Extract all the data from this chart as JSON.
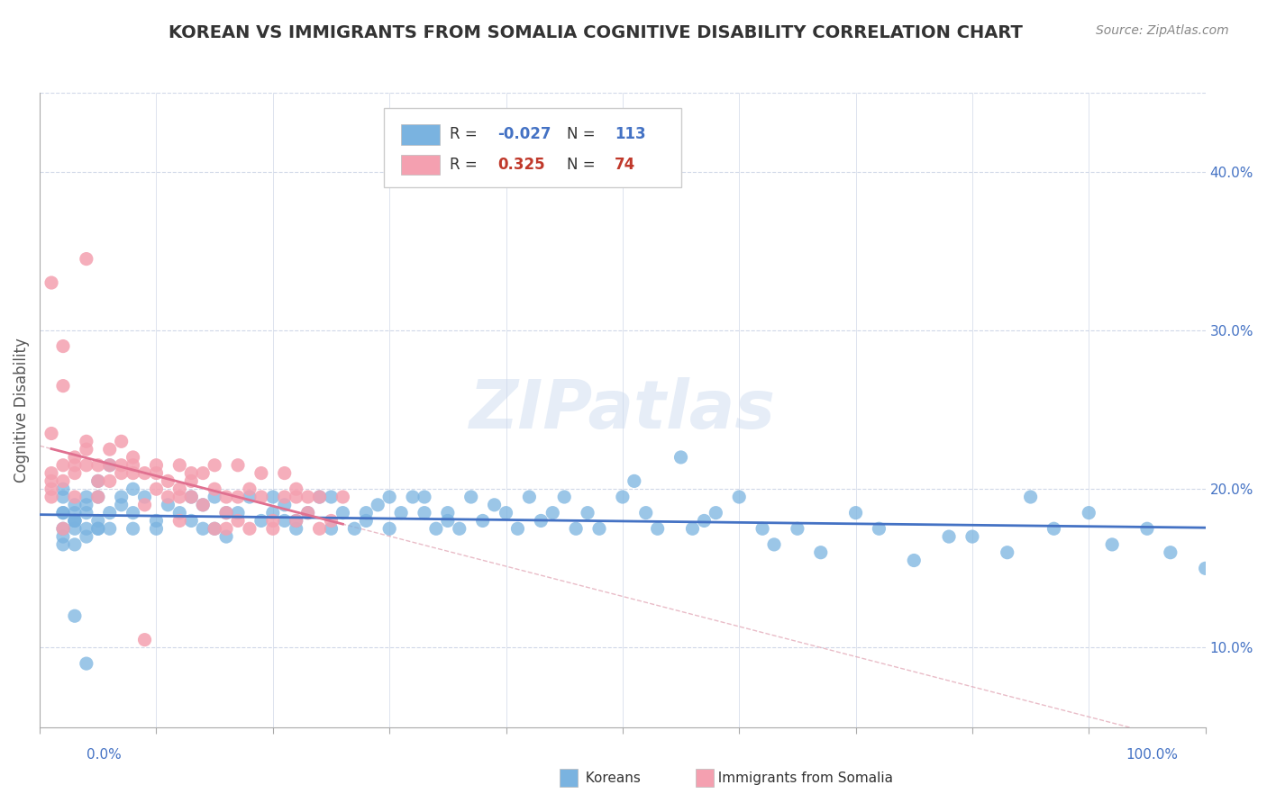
{
  "title": "KOREAN VS IMMIGRANTS FROM SOMALIA COGNITIVE DISABILITY CORRELATION CHART",
  "source": "Source: ZipAtlas.com",
  "ylabel": "Cognitive Disability",
  "watermark": "ZIPatlas",
  "legend_label1": "Koreans",
  "legend_label2": "Immigrants from Somalia",
  "R1": -0.027,
  "N1": 113,
  "R2": 0.325,
  "N2": 74,
  "color_korean": "#7ab3e0",
  "color_somalia": "#f4a0b0",
  "color_korean_line": "#4472c4",
  "color_somalia_line": "#e07090",
  "color_somalia_dashed": "#e0a0b0",
  "xlim": [
    0.0,
    1.0
  ],
  "ylim": [
    0.05,
    0.45
  ],
  "xticks": [
    0.0,
    0.1,
    0.2,
    0.3,
    0.4,
    0.5,
    0.6,
    0.7,
    0.8,
    0.9,
    1.0
  ],
  "yticks_right": [
    0.1,
    0.2,
    0.3,
    0.4
  ],
  "background_color": "#ffffff",
  "grid_color": "#d0d8e8",
  "title_color": "#333333",
  "korean_x": [
    0.02,
    0.02,
    0.03,
    0.03,
    0.02,
    0.02,
    0.03,
    0.03,
    0.02,
    0.02,
    0.03,
    0.04,
    0.04,
    0.03,
    0.02,
    0.05,
    0.04,
    0.03,
    0.05,
    0.04,
    0.04,
    0.05,
    0.06,
    0.07,
    0.08,
    0.06,
    0.07,
    0.05,
    0.08,
    0.06,
    0.08,
    0.09,
    0.1,
    0.11,
    0.1,
    0.12,
    0.13,
    0.14,
    0.13,
    0.15,
    0.16,
    0.15,
    0.14,
    0.17,
    0.18,
    0.16,
    0.19,
    0.2,
    0.2,
    0.21,
    0.22,
    0.21,
    0.23,
    0.24,
    0.22,
    0.25,
    0.26,
    0.25,
    0.27,
    0.28,
    0.29,
    0.28,
    0.3,
    0.31,
    0.3,
    0.32,
    0.33,
    0.34,
    0.33,
    0.35,
    0.36,
    0.35,
    0.37,
    0.38,
    0.39,
    0.4,
    0.41,
    0.42,
    0.43,
    0.44,
    0.45,
    0.46,
    0.47,
    0.48,
    0.5,
    0.51,
    0.52,
    0.53,
    0.55,
    0.56,
    0.57,
    0.58,
    0.6,
    0.62,
    0.63,
    0.65,
    0.67,
    0.7,
    0.72,
    0.75,
    0.78,
    0.8,
    0.83,
    0.85,
    0.87,
    0.9,
    0.92,
    0.95,
    0.97,
    1.0,
    0.03,
    0.04,
    0.05
  ],
  "korean_y": [
    0.185,
    0.175,
    0.19,
    0.18,
    0.17,
    0.165,
    0.185,
    0.175,
    0.195,
    0.2,
    0.18,
    0.19,
    0.175,
    0.165,
    0.185,
    0.195,
    0.17,
    0.18,
    0.175,
    0.185,
    0.195,
    0.18,
    0.215,
    0.19,
    0.185,
    0.175,
    0.195,
    0.205,
    0.175,
    0.185,
    0.2,
    0.195,
    0.18,
    0.19,
    0.175,
    0.185,
    0.195,
    0.175,
    0.18,
    0.195,
    0.185,
    0.175,
    0.19,
    0.185,
    0.195,
    0.17,
    0.18,
    0.185,
    0.195,
    0.18,
    0.175,
    0.19,
    0.185,
    0.195,
    0.18,
    0.175,
    0.185,
    0.195,
    0.175,
    0.185,
    0.19,
    0.18,
    0.195,
    0.185,
    0.175,
    0.195,
    0.185,
    0.175,
    0.195,
    0.18,
    0.175,
    0.185,
    0.195,
    0.18,
    0.19,
    0.185,
    0.175,
    0.195,
    0.18,
    0.185,
    0.195,
    0.175,
    0.185,
    0.175,
    0.195,
    0.205,
    0.185,
    0.175,
    0.22,
    0.175,
    0.18,
    0.185,
    0.195,
    0.175,
    0.165,
    0.175,
    0.16,
    0.185,
    0.175,
    0.155,
    0.17,
    0.17,
    0.16,
    0.195,
    0.175,
    0.185,
    0.165,
    0.175,
    0.16,
    0.15,
    0.12,
    0.09,
    0.175
  ],
  "somalia_x": [
    0.01,
    0.01,
    0.01,
    0.01,
    0.01,
    0.02,
    0.01,
    0.02,
    0.02,
    0.02,
    0.02,
    0.03,
    0.03,
    0.03,
    0.03,
    0.04,
    0.04,
    0.04,
    0.04,
    0.05,
    0.05,
    0.05,
    0.06,
    0.06,
    0.06,
    0.07,
    0.07,
    0.07,
    0.08,
    0.08,
    0.08,
    0.09,
    0.09,
    0.09,
    0.1,
    0.1,
    0.1,
    0.11,
    0.11,
    0.12,
    0.12,
    0.12,
    0.12,
    0.13,
    0.13,
    0.13,
    0.14,
    0.14,
    0.15,
    0.15,
    0.15,
    0.16,
    0.16,
    0.16,
    0.17,
    0.17,
    0.17,
    0.18,
    0.18,
    0.19,
    0.19,
    0.2,
    0.2,
    0.21,
    0.21,
    0.22,
    0.22,
    0.22,
    0.23,
    0.23,
    0.24,
    0.24,
    0.25,
    0.26
  ],
  "somalia_y": [
    0.195,
    0.2,
    0.21,
    0.205,
    0.33,
    0.175,
    0.235,
    0.215,
    0.29,
    0.265,
    0.205,
    0.22,
    0.215,
    0.21,
    0.195,
    0.23,
    0.225,
    0.215,
    0.345,
    0.205,
    0.195,
    0.215,
    0.215,
    0.225,
    0.205,
    0.215,
    0.23,
    0.21,
    0.22,
    0.215,
    0.21,
    0.19,
    0.21,
    0.105,
    0.21,
    0.215,
    0.2,
    0.195,
    0.205,
    0.215,
    0.195,
    0.18,
    0.2,
    0.195,
    0.21,
    0.205,
    0.19,
    0.21,
    0.175,
    0.2,
    0.215,
    0.195,
    0.185,
    0.175,
    0.18,
    0.195,
    0.215,
    0.175,
    0.2,
    0.195,
    0.21,
    0.18,
    0.175,
    0.195,
    0.21,
    0.195,
    0.18,
    0.2,
    0.185,
    0.195,
    0.175,
    0.195,
    0.18,
    0.195
  ]
}
